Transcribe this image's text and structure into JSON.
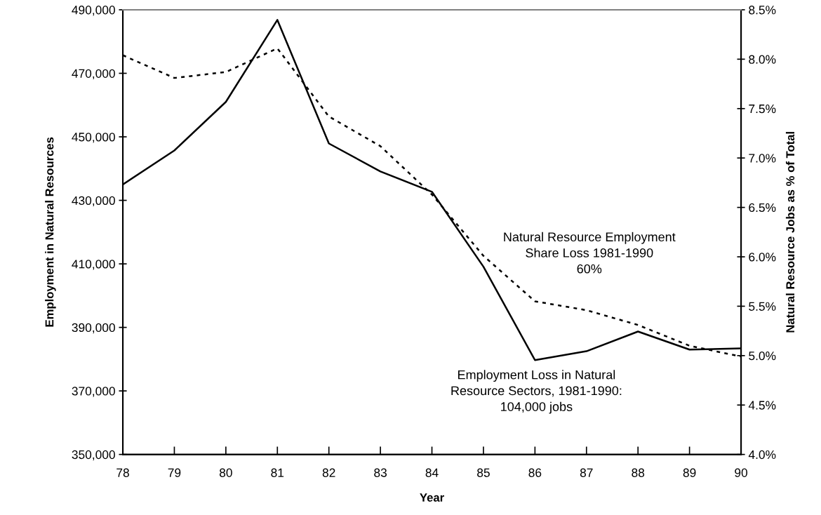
{
  "chart_data": {
    "type": "line",
    "xlabel": "Year",
    "ylabel": "Employment in Natural Resources",
    "y2label": "Natural Resource Jobs as % of Total",
    "x": [
      78,
      79,
      80,
      81,
      82,
      83,
      84,
      85,
      86,
      87,
      88,
      89,
      90
    ],
    "series": [
      {
        "color": "#000000",
        "line_style": "solid",
        "values": [
          435000,
          445700,
          461000,
          486800,
          447900,
          439100,
          432700,
          409100,
          379700,
          382500,
          388700,
          383000,
          383400
        ]
      },
      {
        "color": "#000000",
        "line_style": "dotted",
        "axis": "y2",
        "values": [
          8.04,
          7.81,
          7.87,
          8.11,
          7.42,
          7.12,
          6.63,
          6.01,
          5.55,
          5.46,
          5.31,
          5.1,
          4.99
        ]
      }
    ],
    "xlim": [
      78,
      90
    ],
    "xticks": [
      78,
      79,
      80,
      81,
      82,
      83,
      84,
      85,
      86,
      87,
      88,
      89,
      90
    ],
    "ylim": [
      350000,
      490000
    ],
    "yticks": [
      {
        "value": 350000,
        "label": "350,000"
      },
      {
        "value": 370000,
        "label": "370,000"
      },
      {
        "value": 390000,
        "label": "390,000"
      },
      {
        "value": 410000,
        "label": "410,000"
      },
      {
        "value": 430000,
        "label": "430,000"
      },
      {
        "value": 450000,
        "label": "450,000"
      },
      {
        "value": 470000,
        "label": "470,000"
      },
      {
        "value": 490000,
        "label": "490,000"
      }
    ],
    "y2lim": [
      4.0,
      8.5
    ],
    "y2ticks": [
      {
        "value": 4.0,
        "label": "4.0%"
      },
      {
        "value": 4.5,
        "label": "4.5%"
      },
      {
        "value": 5.0,
        "label": "5.0%"
      },
      {
        "value": 5.5,
        "label": "5.5%"
      },
      {
        "value": 6.0,
        "label": "6.0%"
      },
      {
        "value": 6.5,
        "label": "6.5%"
      },
      {
        "value": 7.0,
        "label": "7.0%"
      },
      {
        "value": 7.5,
        "label": "7.5%"
      },
      {
        "value": 8.0,
        "label": "8.0%"
      },
      {
        "value": 8.5,
        "label": "8.5%"
      }
    ],
    "annotations": [
      "Natural Resource Employment\nShare Loss 1981-1990\n60%",
      "Employment Loss in Natural\nResource Sectors, 1981-1990:\n104,000 jobs"
    ],
    "grid": false,
    "legend": false,
    "marker": "none"
  }
}
